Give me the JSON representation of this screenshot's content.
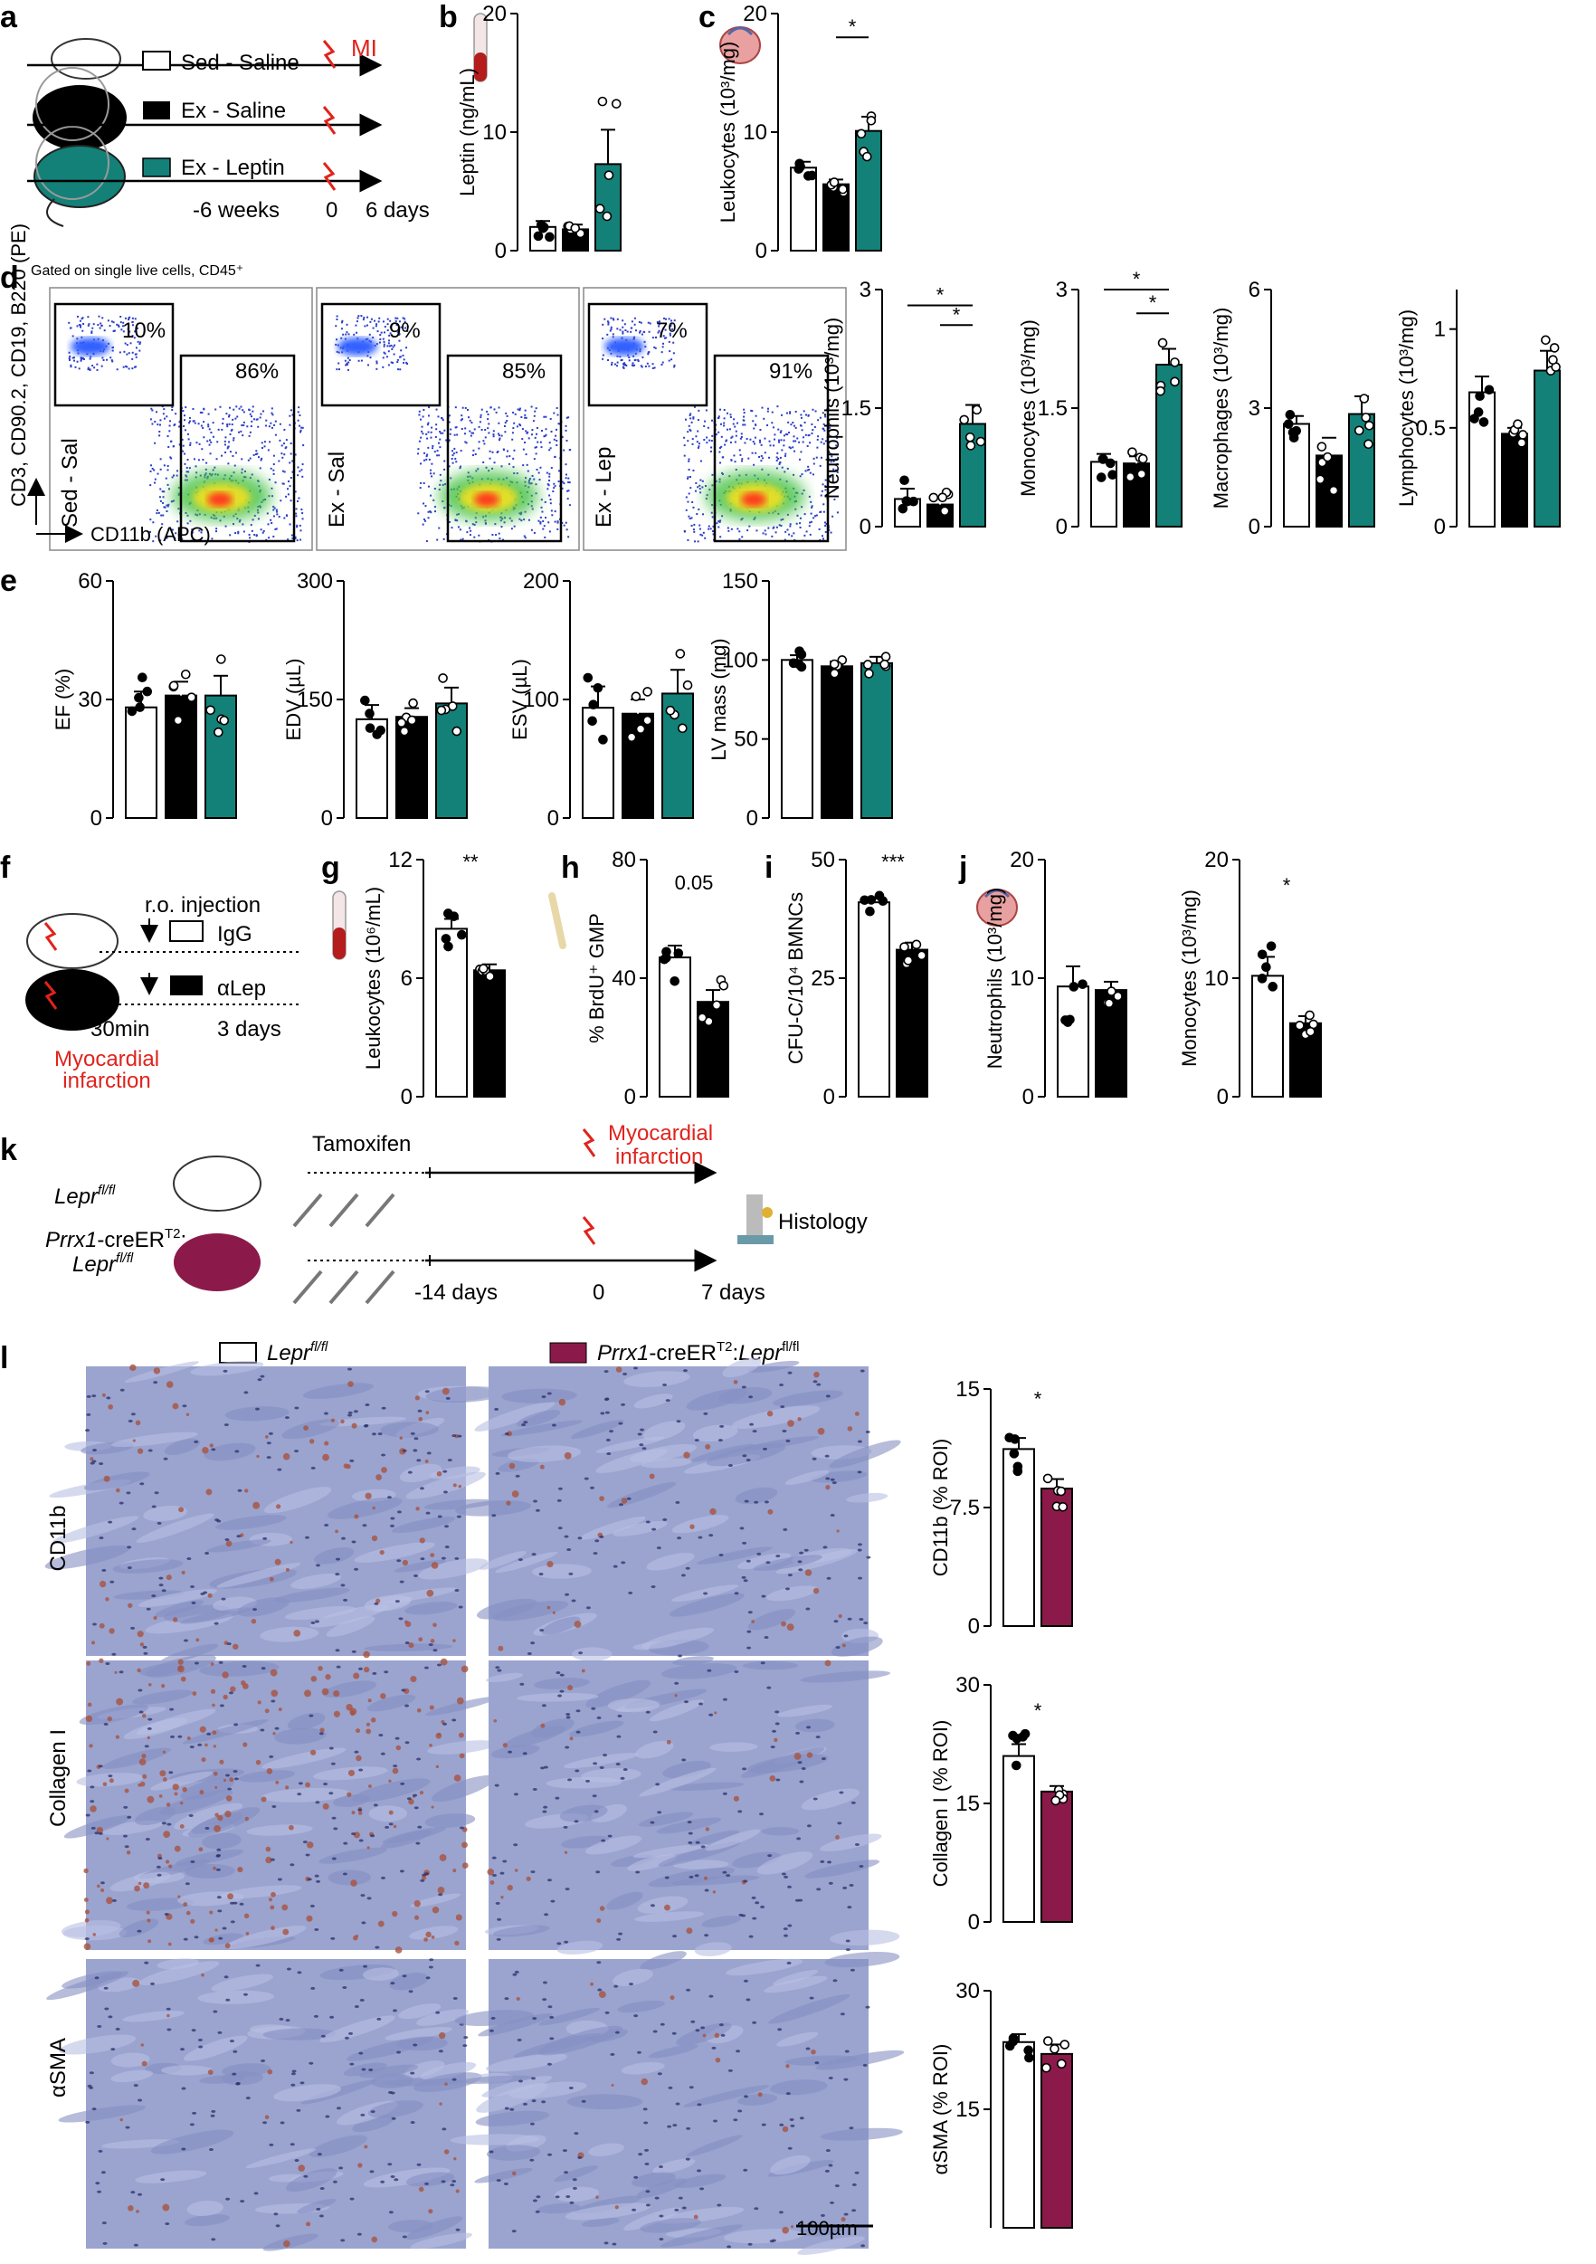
{
  "figure": {
    "panel_letters": [
      "a",
      "b",
      "c",
      "d",
      "e",
      "f",
      "g",
      "h",
      "i",
      "j",
      "k",
      "l"
    ],
    "a": {
      "groups": [
        "Sed - Saline",
        "Ex - Saline",
        "Ex - Leptin"
      ],
      "mi": "MI",
      "timeline": [
        "-6 weeks",
        "0",
        "6 days"
      ]
    },
    "d": {
      "gating": "Gated on single live cells, CD45⁺",
      "ylabel": "CD3, CD90.2, CD19, B220 (PE)",
      "xlabel": "CD11b (APC)",
      "plots": [
        {
          "sample": "Sed - Sal",
          "upper": "10%",
          "lower": "86%"
        },
        {
          "sample": "Ex - Sal",
          "upper": "9%",
          "lower": "85%"
        },
        {
          "sample": "Ex - Lep",
          "upper": "7%",
          "lower": "91%"
        }
      ]
    },
    "f": {
      "injection": "r.o. injection",
      "igg": "IgG",
      "alep": "αLep",
      "times": [
        "30min",
        "3 days"
      ],
      "mi_line1": "Myocardial",
      "mi_line2": "infarction"
    },
    "k": {
      "tamoxifen": "Tamoxifen",
      "mi_line1": "Myocardial",
      "mi_line2": "infarction",
      "histology": "Histology",
      "ctrl_gene": "Lepr",
      "ctrl_sup": "fl/fl",
      "ko_gene1": "Prrx1",
      "ko_mid": "-creER",
      "ko_sup1": "T2",
      "ko_colon": ":",
      "ko_gene2": "Lepr",
      "ko_sup2": "fl/fl",
      "timeline": [
        "-14 days",
        "0",
        "7 days"
      ]
    },
    "l": {
      "legend_ctrl_gene": "Lepr",
      "legend_ctrl_sup": "fl/fl",
      "legend_ko_gene1": "Prrx1",
      "legend_ko_mid": "-creER",
      "legend_ko_sup1": "T2",
      "legend_ko_colon": ":",
      "legend_ko_gene2": "Lepr",
      "legend_ko_sup2": "fl/fl",
      "rows": [
        "CD11b",
        "Collagen I",
        "αSMA"
      ],
      "scale_bar": "100µm"
    }
  },
  "colors": {
    "teal": "#138178",
    "black": "#000000",
    "maroon": "#8b1a4a",
    "stain_bg": "#9aa4cf",
    "stain_red": "#a8523f",
    "flow_blue": "#2b3ec8",
    "annot_red": "#e0231c"
  },
  "chart_data": [
    {
      "id": "b",
      "type": "bar",
      "ylabel": "Leptin (ng/mL)",
      "ylim": [
        0,
        20
      ],
      "yticks": [
        0,
        10,
        20
      ],
      "bars": [
        {
          "mean": 2.0,
          "sem": 0.5
        },
        {
          "mean": 1.8,
          "sem": 0.4
        },
        {
          "mean": 7.3,
          "sem": 2.9
        }
      ],
      "stars": []
    },
    {
      "id": "c",
      "type": "bar",
      "ylabel": "Leukocytes (10³/mg)",
      "ylim": [
        0,
        20
      ],
      "yticks": [
        0,
        10,
        20
      ],
      "bars": [
        {
          "mean": 7.0,
          "sem": 0.5
        },
        {
          "mean": 5.6,
          "sem": 0.4
        },
        {
          "mean": 10.1,
          "sem": 1.2
        }
      ],
      "stars": [
        {
          "from": 1,
          "to": 2,
          "text": "*",
          "y": 18.0
        }
      ]
    },
    {
      "id": "d1",
      "type": "bar",
      "ylabel": "Neutrophils (10³/mg)",
      "ylim": [
        0,
        3
      ],
      "yticks": [
        0,
        1.5,
        3
      ],
      "bars": [
        {
          "mean": 0.35,
          "sem": 0.13
        },
        {
          "mean": 0.28,
          "sem": 0.09
        },
        {
          "mean": 1.3,
          "sem": 0.24
        }
      ],
      "stars": [
        {
          "from": 0,
          "to": 2,
          "text": "*",
          "y": 2.8
        },
        {
          "from": 1,
          "to": 2,
          "text": "*",
          "y": 2.55
        }
      ]
    },
    {
      "id": "d2",
      "type": "bar",
      "ylabel": "Monocytes (10³/mg)",
      "ylim": [
        0,
        3
      ],
      "yticks": [
        0,
        1.5,
        3
      ],
      "bars": [
        {
          "mean": 0.82,
          "sem": 0.1
        },
        {
          "mean": 0.8,
          "sem": 0.09
        },
        {
          "mean": 2.05,
          "sem": 0.2
        }
      ],
      "stars": [
        {
          "from": 0,
          "to": 2,
          "text": "*",
          "y": 3.0
        },
        {
          "from": 1,
          "to": 2,
          "text": "*",
          "y": 2.7
        }
      ]
    },
    {
      "id": "d3",
      "type": "bar",
      "ylabel": "Macrophages (10³/mg)",
      "ylim": [
        0,
        6
      ],
      "yticks": [
        0,
        3,
        6
      ],
      "bars": [
        {
          "mean": 2.6,
          "sem": 0.2
        },
        {
          "mean": 1.8,
          "sem": 0.45
        },
        {
          "mean": 2.85,
          "sem": 0.45
        }
      ],
      "stars": []
    },
    {
      "id": "d4",
      "type": "bar",
      "ylabel": "Lymphocytes (10³/mg)",
      "ylim": [
        0,
        1.2
      ],
      "yticks": [
        0,
        0.5,
        1
      ],
      "bars": [
        {
          "mean": 0.68,
          "sem": 0.08
        },
        {
          "mean": 0.47,
          "sem": 0.03
        },
        {
          "mean": 0.79,
          "sem": 0.1
        }
      ],
      "stars": []
    },
    {
      "id": "e1",
      "type": "bar",
      "ylabel": "EF (%)",
      "ylim": [
        0,
        60
      ],
      "yticks": [
        0,
        30,
        60
      ],
      "bars": [
        {
          "mean": 28,
          "sem": 4
        },
        {
          "mean": 31,
          "sem": 3.5
        },
        {
          "mean": 31,
          "sem": 5
        }
      ],
      "stars": []
    },
    {
      "id": "e2",
      "type": "bar",
      "ylabel": "EDV (µL)",
      "ylim": [
        0,
        300
      ],
      "yticks": [
        0,
        150,
        300
      ],
      "bars": [
        {
          "mean": 125,
          "sem": 18
        },
        {
          "mean": 128,
          "sem": 11
        },
        {
          "mean": 145,
          "sem": 20
        }
      ],
      "stars": []
    },
    {
      "id": "e3",
      "type": "bar",
      "ylabel": "ESV (µL)",
      "ylim": [
        0,
        200
      ],
      "yticks": [
        0,
        100,
        200
      ],
      "bars": [
        {
          "mean": 93,
          "sem": 18
        },
        {
          "mean": 88,
          "sem": 12
        },
        {
          "mean": 105,
          "sem": 20
        }
      ],
      "stars": []
    },
    {
      "id": "e4",
      "type": "bar",
      "ylabel": "LV mass (mg)",
      "ylim": [
        0,
        150
      ],
      "yticks": [
        0,
        50,
        100,
        150
      ],
      "bars": [
        {
          "mean": 100,
          "sem": 3
        },
        {
          "mean": 96,
          "sem": 3
        },
        {
          "mean": 98,
          "sem": 4
        }
      ],
      "stars": []
    },
    {
      "id": "g",
      "type": "bar",
      "ylabel": "Leukocytes (10⁶/mL)",
      "ylim": [
        0,
        12
      ],
      "yticks": [
        0,
        6,
        12
      ],
      "bars": [
        {
          "mean": 8.5,
          "sem": 0.5
        },
        {
          "mean": 6.4,
          "sem": 0.3
        }
      ],
      "stars": [
        {
          "text": "**",
          "y": 12
        }
      ]
    },
    {
      "id": "h",
      "type": "bar",
      "ylabel": "% BrdU⁺ GMP",
      "ylim": [
        0,
        80
      ],
      "yticks": [
        0,
        40,
        80
      ],
      "bars": [
        {
          "mean": 47,
          "sem": 4
        },
        {
          "mean": 32,
          "sem": 4
        }
      ],
      "stars": [
        {
          "text": "0.05",
          "y": 73
        }
      ]
    },
    {
      "id": "i",
      "type": "bar",
      "ylabel": "CFU-C/10⁴ BMNCs",
      "ylim": [
        0,
        50
      ],
      "yticks": [
        0,
        25,
        50
      ],
      "bars": [
        {
          "mean": 41,
          "sem": 1
        },
        {
          "mean": 31,
          "sem": 1.5
        }
      ],
      "stars": [
        {
          "text": "***",
          "y": 50
        }
      ]
    },
    {
      "id": "j1",
      "type": "bar",
      "ylabel": "Neutrophils (10³/mg)",
      "ylim": [
        0,
        20
      ],
      "yticks": [
        0,
        10,
        20
      ],
      "bars": [
        {
          "mean": 9.3,
          "sem": 1.7
        },
        {
          "mean": 9.0,
          "sem": 0.7
        }
      ],
      "stars": []
    },
    {
      "id": "j2",
      "type": "bar",
      "ylabel": "Monocytes (10³/mg)",
      "ylim": [
        0,
        20
      ],
      "yticks": [
        0,
        10,
        20
      ],
      "bars": [
        {
          "mean": 10.2,
          "sem": 1.6
        },
        {
          "mean": 6.2,
          "sem": 0.6
        }
      ],
      "stars": [
        {
          "text": "*",
          "y": 18
        }
      ]
    },
    {
      "id": "l1",
      "type": "bar",
      "ylabel": "CD11b (% ROI)",
      "ylim": [
        0,
        15
      ],
      "yticks": [
        0,
        7.5,
        15
      ],
      "bars": [
        {
          "mean": 11.2,
          "sem": 0.7
        },
        {
          "mean": 8.7,
          "sem": 0.6
        }
      ],
      "stars": [
        {
          "text": "*",
          "y": 14.5
        }
      ]
    },
    {
      "id": "l2",
      "type": "bar",
      "ylabel": "Collagen I (% ROI)",
      "ylim": [
        0,
        30
      ],
      "yticks": [
        0,
        15,
        30
      ],
      "bars": [
        {
          "mean": 21,
          "sem": 1.5
        },
        {
          "mean": 16.5,
          "sem": 0.7
        }
      ],
      "stars": [
        {
          "text": "*",
          "y": 27
        }
      ]
    },
    {
      "id": "l3",
      "type": "bar",
      "ylabel": "αSMA (% ROI)",
      "ylim": [
        0,
        30
      ],
      "yticks": [
        15,
        30
      ],
      "bars": [
        {
          "mean": 23.5,
          "sem": 1
        },
        {
          "mean": 22,
          "sem": 1.2
        }
      ],
      "stars": []
    }
  ]
}
